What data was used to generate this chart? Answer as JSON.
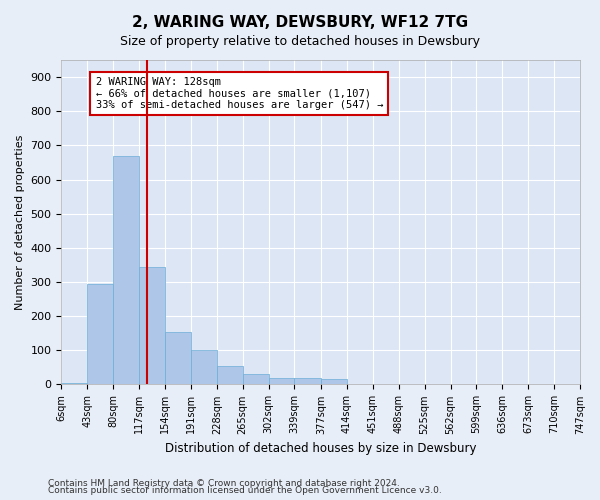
{
  "title": "2, WARING WAY, DEWSBURY, WF12 7TG",
  "subtitle": "Size of property relative to detached houses in Dewsbury",
  "xlabel": "Distribution of detached houses by size in Dewsbury",
  "ylabel": "Number of detached properties",
  "bar_values": [
    5,
    295,
    670,
    345,
    155,
    100,
    55,
    30,
    20,
    20,
    15,
    0,
    0,
    0,
    0,
    0,
    0,
    0,
    0,
    0
  ],
  "bin_edges": [
    6,
    43,
    80,
    117,
    154,
    191,
    228,
    265,
    302,
    339,
    377,
    414,
    451,
    488,
    525,
    562,
    599,
    636,
    673,
    710,
    747
  ],
  "bin_labels": [
    "6sqm",
    "43sqm",
    "80sqm",
    "117sqm",
    "154sqm",
    "191sqm",
    "228sqm",
    "265sqm",
    "302sqm",
    "339sqm",
    "377sqm",
    "414sqm",
    "451sqm",
    "488sqm",
    "525sqm",
    "562sqm",
    "599sqm",
    "636sqm",
    "673sqm",
    "710sqm",
    "747sqm"
  ],
  "bar_color": "#aec6e8",
  "bar_edge_color": "#6baed6",
  "vline_x": 128,
  "vline_color": "#cc0000",
  "annotation_text": "2 WARING WAY: 128sqm\n← 66% of detached houses are smaller (1,107)\n33% of semi-detached houses are larger (547) →",
  "annotation_box_color": "#cc0000",
  "ylim": [
    0,
    950
  ],
  "yticks": [
    0,
    100,
    200,
    300,
    400,
    500,
    600,
    700,
    800,
    900
  ],
  "footnote1": "Contains HM Land Registry data © Crown copyright and database right 2024.",
  "footnote2": "Contains public sector information licensed under the Open Government Licence v3.0.",
  "bg_color": "#e8eef7",
  "plot_bg_color": "#dce6f5"
}
